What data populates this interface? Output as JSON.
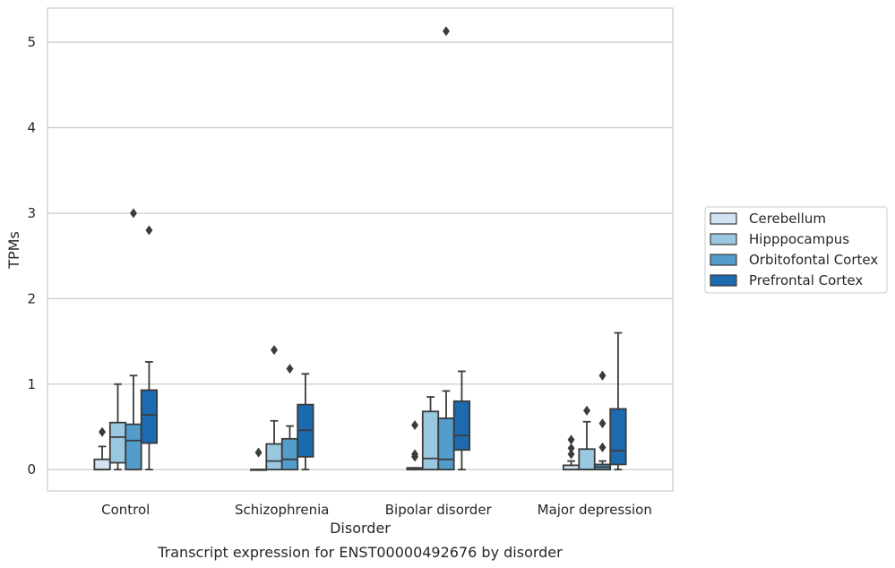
{
  "chart_data": {
    "type": "box",
    "title": "Transcript expression for ENST00000492676 by disorder",
    "xlabel": "Disorder",
    "ylabel": "TPMs",
    "ylim": [
      -0.25,
      5.4
    ],
    "yticks": [
      0,
      1,
      2,
      3,
      4,
      5
    ],
    "grid": "horizontal",
    "legend_position": "right",
    "categories": [
      "Control",
      "Schizophrenia",
      "Bipolar disorder",
      "Major depression"
    ],
    "series": [
      {
        "name": "Cerebellum",
        "color": "#d1e2f2",
        "boxes": [
          {
            "whislo": 0.0,
            "q1": 0.0,
            "med": 0.0,
            "q3": 0.12,
            "whishi": 0.27,
            "fliers": [
              0.44
            ]
          },
          {
            "whislo": 0.0,
            "q1": 0.0,
            "med": 0.0,
            "q3": 0.0,
            "whishi": 0.0,
            "fliers": [
              0.2
            ]
          },
          {
            "whislo": 0.0,
            "q1": 0.0,
            "med": 0.0,
            "q3": 0.02,
            "whishi": 0.02,
            "fliers": [
              0.15,
              0.18,
              0.52
            ]
          },
          {
            "whislo": 0.0,
            "q1": 0.0,
            "med": 0.0,
            "q3": 0.05,
            "whishi": 0.1,
            "fliers": [
              0.18,
              0.25,
              0.35
            ]
          }
        ]
      },
      {
        "name": "Hipppocampus",
        "color": "#9ac8e0",
        "boxes": [
          {
            "whislo": 0.0,
            "q1": 0.08,
            "med": 0.38,
            "q3": 0.55,
            "whishi": 1.0,
            "fliers": []
          },
          {
            "whislo": 0.0,
            "q1": 0.0,
            "med": 0.1,
            "q3": 0.3,
            "whishi": 0.57,
            "fliers": [
              1.4
            ]
          },
          {
            "whislo": 0.0,
            "q1": 0.0,
            "med": 0.13,
            "q3": 0.68,
            "whishi": 0.85,
            "fliers": []
          },
          {
            "whislo": 0.0,
            "q1": 0.0,
            "med": 0.0,
            "q3": 0.24,
            "whishi": 0.56,
            "fliers": [
              0.69
            ]
          }
        ]
      },
      {
        "name": "Orbitofontal Cortex",
        "color": "#529dcc",
        "boxes": [
          {
            "whislo": 0.0,
            "q1": 0.0,
            "med": 0.34,
            "q3": 0.53,
            "whishi": 1.1,
            "fliers": [
              3.0
            ]
          },
          {
            "whislo": 0.0,
            "q1": 0.0,
            "med": 0.12,
            "q3": 0.36,
            "whishi": 0.51,
            "fliers": [
              1.18
            ]
          },
          {
            "whislo": 0.0,
            "q1": 0.0,
            "med": 0.12,
            "q3": 0.6,
            "whishi": 0.92,
            "fliers": [
              5.13
            ]
          },
          {
            "whislo": 0.0,
            "q1": 0.0,
            "med": 0.03,
            "q3": 0.06,
            "whishi": 0.1,
            "fliers": [
              0.26,
              0.54,
              1.1
            ]
          }
        ]
      },
      {
        "name": "Prefrontal Cortex",
        "color": "#1c6aaf",
        "boxes": [
          {
            "whislo": 0.0,
            "q1": 0.31,
            "med": 0.64,
            "q3": 0.93,
            "whishi": 1.26,
            "fliers": [
              2.8
            ]
          },
          {
            "whislo": 0.0,
            "q1": 0.15,
            "med": 0.46,
            "q3": 0.76,
            "whishi": 1.12,
            "fliers": []
          },
          {
            "whislo": 0.0,
            "q1": 0.23,
            "med": 0.4,
            "q3": 0.8,
            "whishi": 1.15,
            "fliers": []
          },
          {
            "whislo": 0.0,
            "q1": 0.06,
            "med": 0.22,
            "q3": 0.71,
            "whishi": 1.6,
            "fliers": []
          }
        ]
      }
    ]
  }
}
